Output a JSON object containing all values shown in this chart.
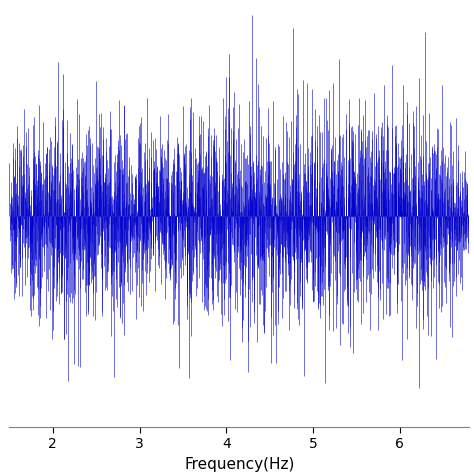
{
  "xlabel": "Frequency(Hz)",
  "ylabel": "",
  "xlim": [
    1.5,
    6.8
  ],
  "ylim": [
    -1.05,
    1.05
  ],
  "xticks": [
    2,
    3,
    4,
    5,
    6
  ],
  "line_color": "#0000CC",
  "background_color": "#FFFFFF",
  "n_points": 3000,
  "seed": 7,
  "figsize": [
    4.74,
    4.74
  ],
  "dpi": 100,
  "envelope_centers": [
    1.7,
    2.2,
    2.55,
    3.05,
    3.6,
    4.1,
    4.55,
    5.05,
    5.55,
    6.05,
    6.5
  ],
  "envelope_widths": [
    0.25,
    0.28,
    0.28,
    0.28,
    0.25,
    0.35,
    0.35,
    0.35,
    0.3,
    0.3,
    0.28
  ],
  "envelope_amps": [
    0.75,
    0.8,
    0.7,
    0.65,
    0.55,
    0.95,
    0.9,
    0.85,
    0.8,
    0.72,
    0.68
  ],
  "baseline": 0.12
}
